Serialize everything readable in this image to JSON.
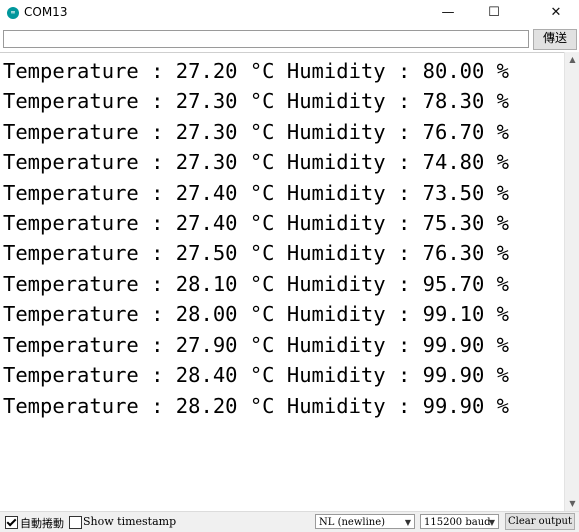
{
  "window": {
    "title": "COM13",
    "icon_text": "∞",
    "minimize_glyph": "—",
    "maximize_glyph": "☐",
    "close_glyph": "✕"
  },
  "send": {
    "input_value": "",
    "button_label": "傳送"
  },
  "serial_output": [
    "Temperature : 27.20 °C Humidity : 80.00 %",
    "Temperature : 27.30 °C Humidity : 78.30 %",
    "Temperature : 27.30 °C Humidity : 76.70 %",
    "Temperature : 27.30 °C Humidity : 74.80 %",
    "Temperature : 27.40 °C Humidity : 73.50 %",
    "Temperature : 27.40 °C Humidity : 75.30 %",
    "Temperature : 27.50 °C Humidity : 76.30 %",
    "Temperature : 28.10 °C Humidity : 95.70 %",
    "Temperature : 28.00 °C Humidity : 99.10 %",
    "Temperature : 27.90 °C Humidity : 99.90 %",
    "Temperature : 28.40 °C Humidity : 99.90 %",
    "Temperature : 28.20 °C Humidity : 99.90 %"
  ],
  "bottom": {
    "autoscroll_label": "自動捲動",
    "autoscroll_checked": true,
    "timestamp_label": "Show timestamp",
    "timestamp_checked": false,
    "line_ending": "NL (newline)",
    "baud_rate": "115200 baud",
    "clear_label": "Clear output"
  },
  "colors": {
    "arduino_teal": "#00979c",
    "chrome_gray": "#f0f0f0"
  }
}
